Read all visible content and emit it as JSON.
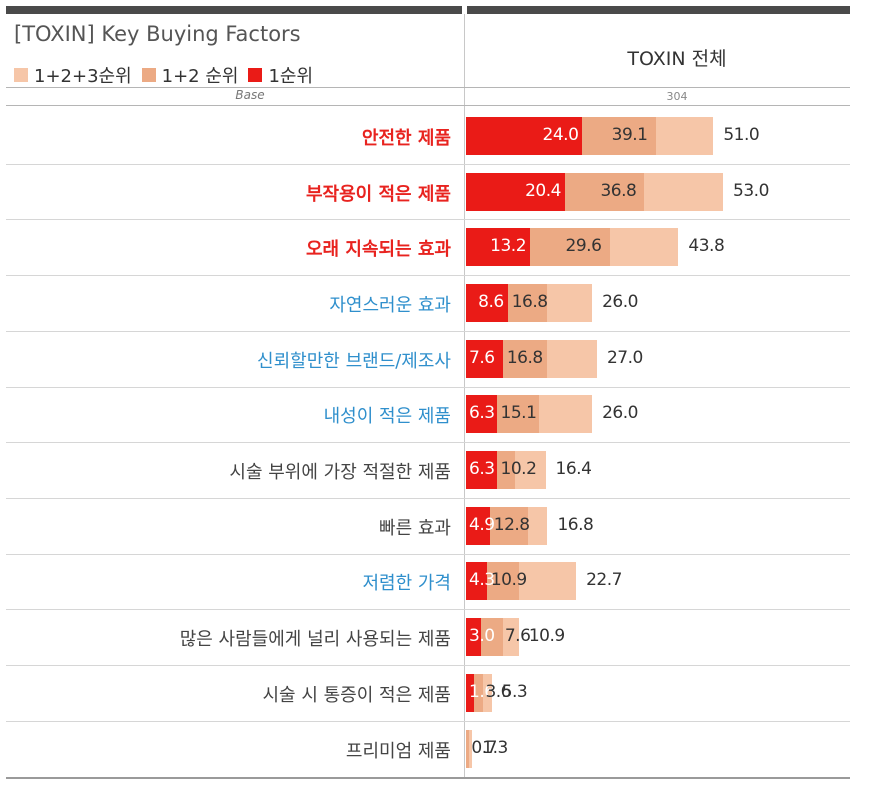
{
  "title": "[TOXIN] Key Buying Factors",
  "legend": [
    {
      "label": "1+2+3순위",
      "color": "#f6c6a8"
    },
    {
      "label": "1+2 순위",
      "color": "#ecaa84"
    },
    {
      "label": "1순위",
      "color": "#ea1b17"
    }
  ],
  "column_header": "TOXIN 전체",
  "base_label": "Base",
  "base_value": "304",
  "chart_data": {
    "type": "bar",
    "orientation": "horizontal",
    "stacking": "overlapping cumulative",
    "title": "[TOXIN] Key Buying Factors",
    "column": "TOXIN 전체",
    "base": 304,
    "categories": [
      {
        "label": "안전한 제품",
        "style": "red"
      },
      {
        "label": "부작용이 적은 제품",
        "style": "red"
      },
      {
        "label": "오래 지속되는 효과",
        "style": "red"
      },
      {
        "label": "자연스러운 효과",
        "style": "blue"
      },
      {
        "label": "신뢰할만한 브랜드/제조사",
        "style": "blue"
      },
      {
        "label": "내성이 적은 제품",
        "style": "blue"
      },
      {
        "label": "시술 부위에 가장 적절한 제품",
        "style": "gray"
      },
      {
        "label": "빠른 효과",
        "style": "gray"
      },
      {
        "label": "저렴한 가격",
        "style": "blue"
      },
      {
        "label": "많은 사람들에게 널리 사용되는 제품",
        "style": "gray"
      },
      {
        "label": "시술 시 통증이 적은 제품",
        "style": "gray"
      },
      {
        "label": "프리미엄 제품",
        "style": "gray"
      }
    ],
    "series": [
      {
        "name": "1순위",
        "color": "#ea1b17",
        "values": [
          "24.0",
          "20.4",
          "13.2",
          "8.6",
          "7.6",
          "6.3",
          "6.3",
          "4.9",
          "4.3",
          "3.0",
          "1.6",
          ""
        ]
      },
      {
        "name": "1+2 순위",
        "color": "#ecaa84",
        "values": [
          "39.1",
          "36.8",
          "29.6",
          "16.8",
          "16.8",
          "15.1",
          "10.2",
          "12.8",
          "10.9",
          "7.6",
          "3.6",
          "0.7"
        ]
      },
      {
        "name": "1+2+3순위",
        "color": "#f6c6a8",
        "values": [
          "51.0",
          "53.0",
          "43.8",
          "26.0",
          "27.0",
          "26.0",
          "16.4",
          "16.8",
          "22.7",
          "10.9",
          "5.3",
          "1.3"
        ]
      }
    ]
  }
}
